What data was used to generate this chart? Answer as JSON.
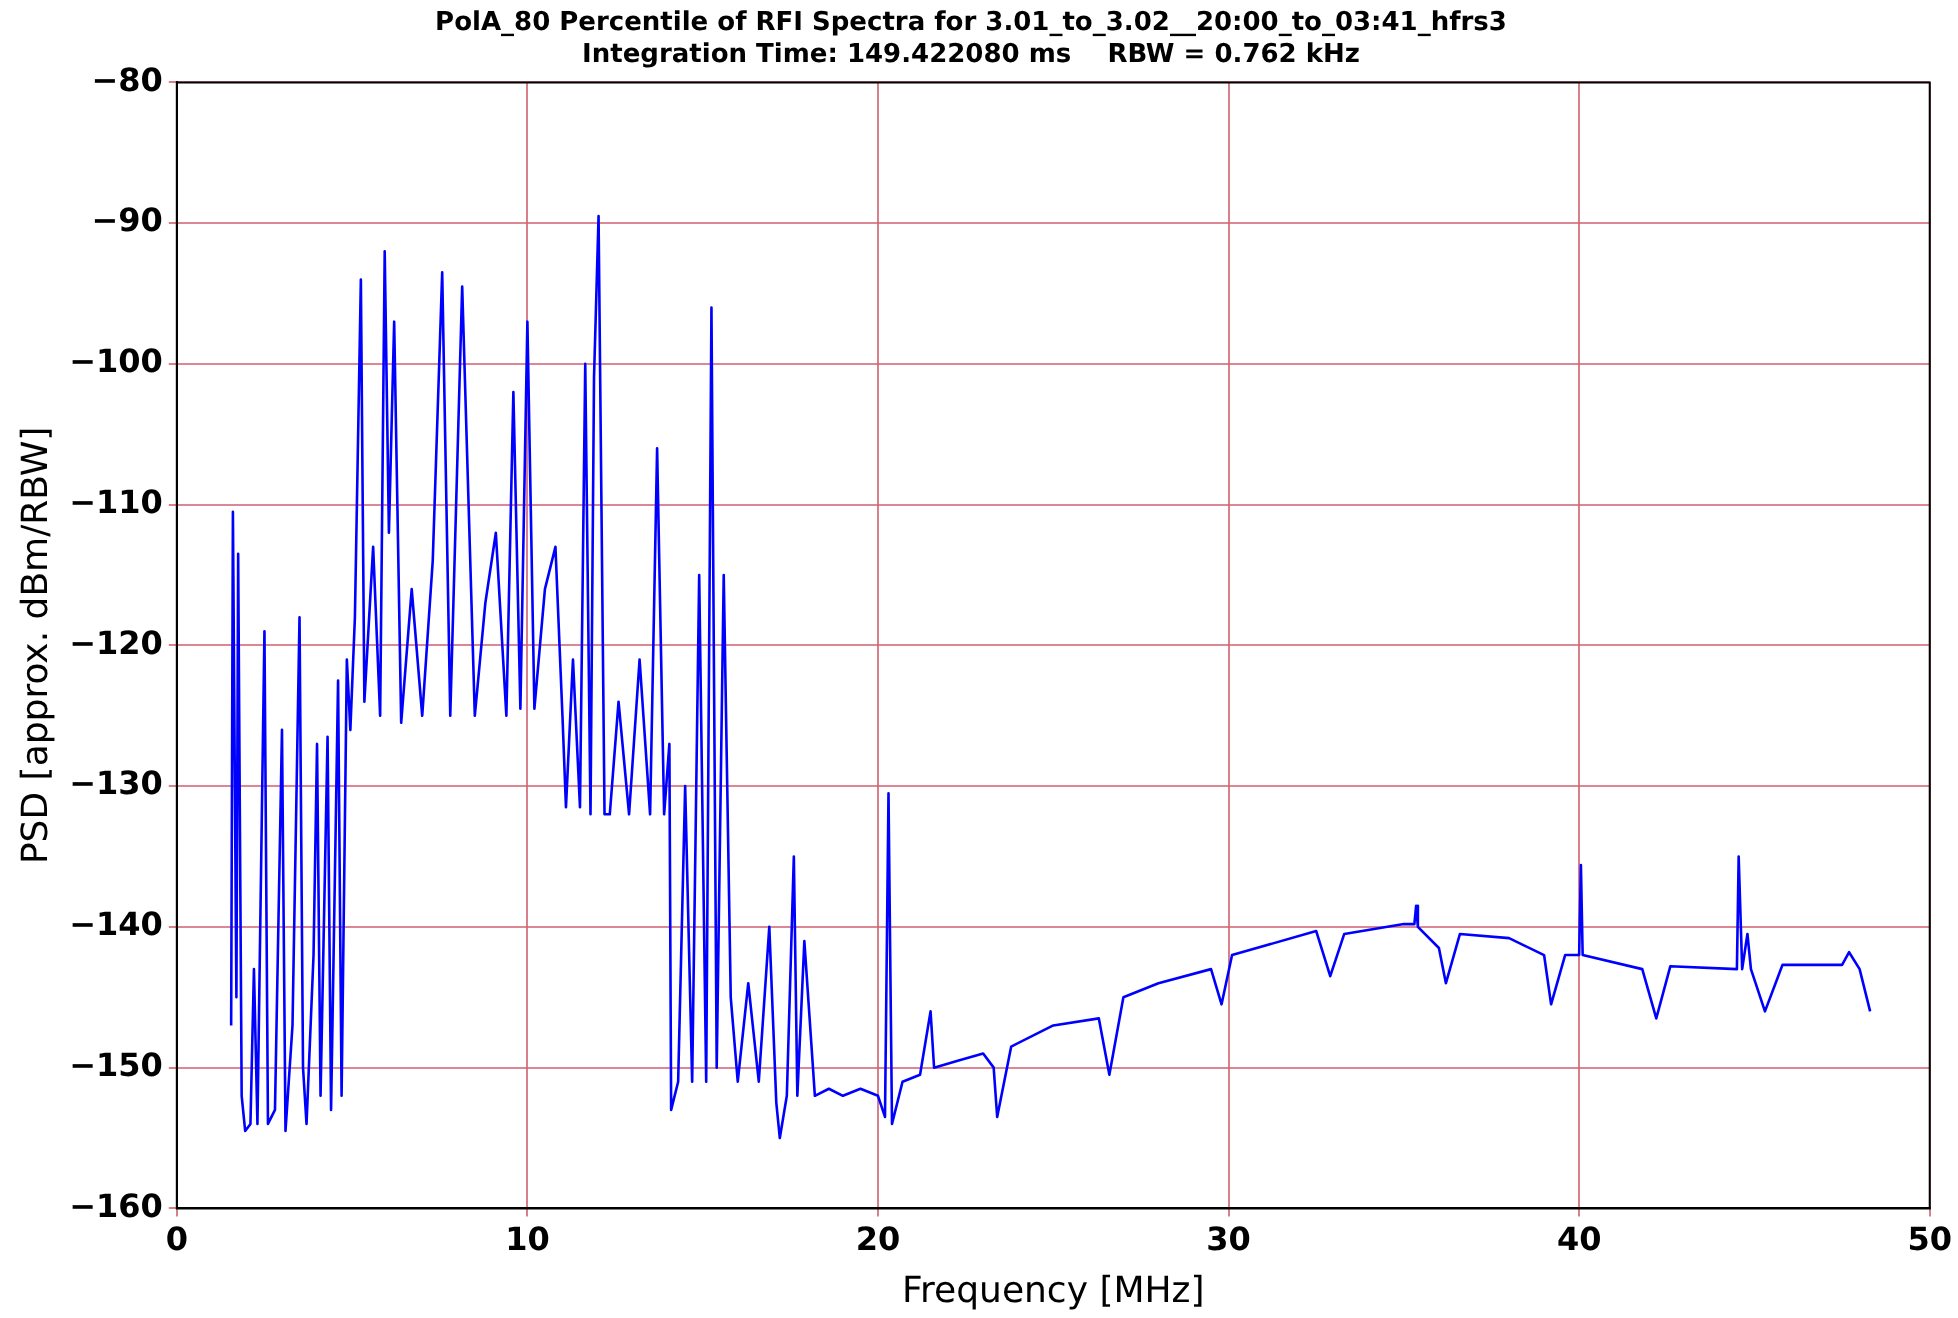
{
  "chart_data": {
    "type": "line",
    "title": "PolA_80 Percentile of RFI Spectra for 3.01_to_3.02__20:00_to_03:41_hfrs3",
    "subtitle": "Integration Time: 149.422080 ms    RBW = 0.762 kHz",
    "xlabel": "Frequency [MHz]",
    "ylabel": "PSD [approx. dBm/RBW]",
    "x": [
      1.55,
      1.6,
      1.7,
      1.75,
      1.85,
      1.95,
      2.1,
      2.2,
      2.3,
      2.5,
      2.6,
      2.8,
      3.0,
      3.1,
      3.3,
      3.5,
      3.6,
      3.7,
      3.9,
      4.0,
      4.1,
      4.3,
      4.4,
      4.6,
      4.7,
      4.85,
      4.95,
      5.08,
      5.25,
      5.35,
      5.6,
      5.8,
      5.93,
      6.05,
      6.2,
      6.4,
      6.7,
      7.0,
      7.3,
      7.57,
      7.8,
      8.14,
      8.5,
      8.8,
      9.1,
      9.4,
      9.6,
      9.8,
      10.0,
      10.2,
      10.5,
      10.8,
      11.0,
      11.1,
      11.3,
      11.5,
      11.65,
      11.8,
      11.9,
      12.03,
      12.2,
      12.35,
      12.6,
      12.9,
      13.2,
      13.5,
      13.7,
      13.9,
      14.05,
      14.1,
      14.3,
      14.5,
      14.7,
      14.9,
      15.1,
      15.25,
      15.4,
      15.6,
      15.8,
      16.0,
      16.3,
      16.6,
      16.9,
      17.1,
      17.2,
      17.4,
      17.6,
      17.7,
      17.9,
      18.2,
      18.6,
      19.0,
      19.5,
      20.0,
      20.2,
      20.3,
      20.4,
      20.7,
      21.2,
      21.5,
      21.6,
      22.3,
      23.0,
      23.3,
      23.4,
      23.8,
      25,
      26.3,
      26.6,
      27,
      28,
      29.5,
      29.8,
      30.1,
      32.5,
      32.9,
      33.3,
      35,
      35.3,
      35.35,
      35.4,
      36,
      36.2,
      36.6,
      38,
      39,
      39.2,
      39.6,
      40,
      40.05,
      40.1,
      41.8,
      42.2,
      42.6,
      44.5,
      44.55,
      44.65,
      44.8,
      44.9,
      45.3,
      45.8,
      47.5,
      47.7,
      48.0,
      48.3
    ],
    "series": [
      {
        "color": "#0000ff",
        "values": [
          -147,
          -110.5,
          -145,
          -113.5,
          -152,
          -154.5,
          -154,
          -143,
          -154,
          -119,
          -154,
          -153,
          -126,
          -154.5,
          -147,
          -118,
          -150,
          -154,
          -142,
          -127,
          -152,
          -126.5,
          -153,
          -122.5,
          -152,
          -121,
          -126,
          -118,
          -94,
          -124,
          -113,
          -125,
          -92,
          -112,
          -97,
          -125.5,
          -116,
          -125,
          -114,
          -93.5,
          -125,
          -94.5,
          -125,
          -117,
          -112,
          -125,
          -102,
          -124.5,
          -97,
          -124.5,
          -116,
          -113,
          -125,
          -131.5,
          -121,
          -131.5,
          -100,
          -132,
          -101,
          -89.5,
          -132,
          -132,
          -124,
          -132,
          -121,
          -132,
          -106,
          -132,
          -127,
          -153,
          -151,
          -130,
          -151,
          -115,
          -151,
          -96,
          -150,
          -115,
          -145,
          -151,
          -144,
          -151,
          -140,
          -152.5,
          -155,
          -152,
          -135,
          -152,
          -141,
          -152,
          -151.5,
          -152,
          -151.5,
          -152,
          -153.5,
          -130.5,
          -154,
          -151,
          -150.5,
          -146,
          -150,
          -149.5,
          -149,
          -150,
          -153.5,
          -148.5,
          -147,
          -146.5,
          -150.5,
          -145,
          -144,
          -143,
          -145.5,
          -142,
          -140.3,
          -143.5,
          -140.5,
          -139.8,
          -139.8,
          -138.5,
          -140,
          -141.5,
          -144,
          -140.5,
          -140.8,
          -142,
          -145.5,
          -142,
          -142,
          -135.6,
          -142,
          -143,
          -146.5,
          -142.8,
          -143,
          -135,
          -143,
          -140.5,
          -143,
          -146,
          -142.7,
          -142.7,
          -141.8,
          -143,
          -146
        ]
      }
    ],
    "xlim": [
      0,
      50
    ],
    "xticks": [
      0,
      10,
      20,
      30,
      40,
      50
    ],
    "ylim": [
      -160,
      -80
    ],
    "yticks": [
      -160,
      -150,
      -140,
      -130,
      -120,
      -110,
      -100,
      -90,
      -80
    ],
    "grid": true,
    "marker": "none",
    "line_style": "solid"
  }
}
